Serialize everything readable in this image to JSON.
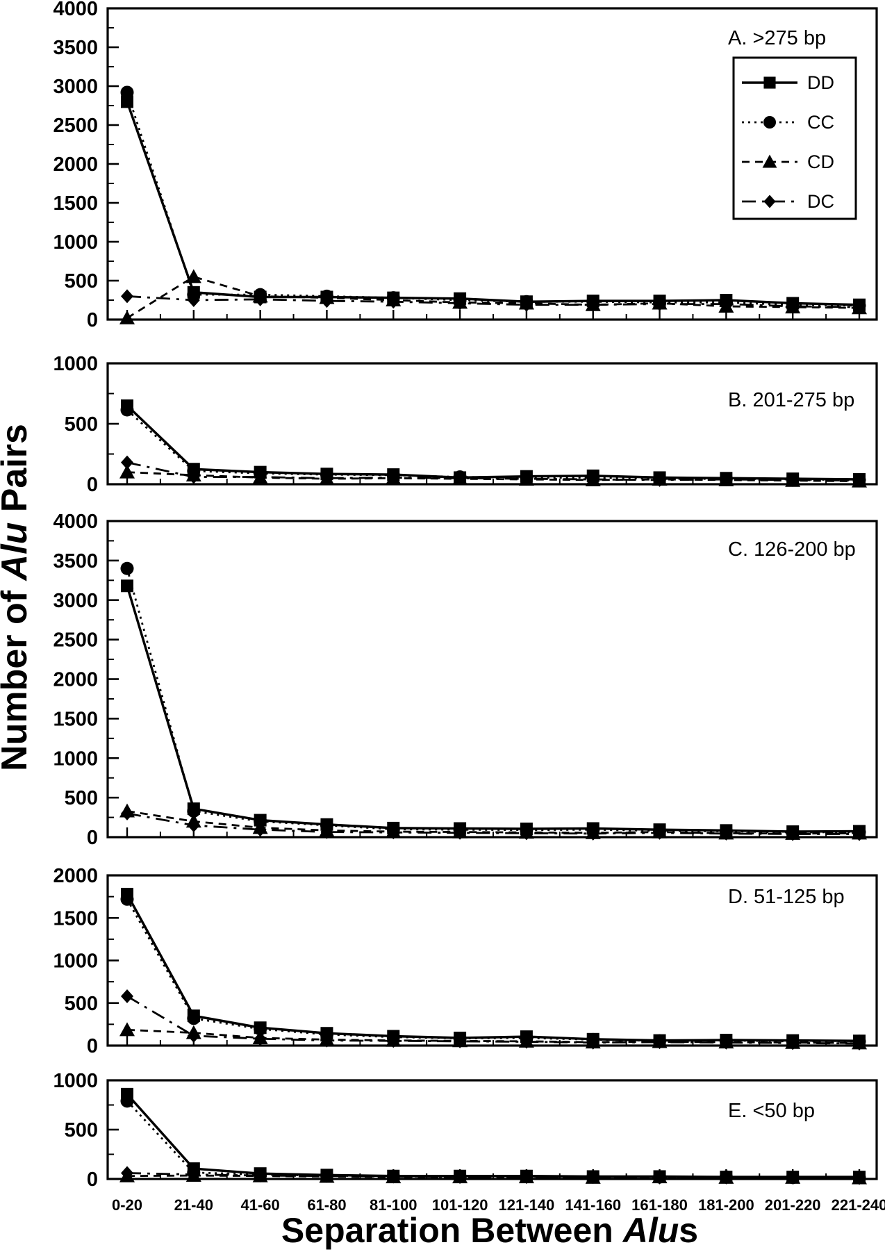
{
  "figure": {
    "y_axis": {
      "title_pre": "Number of ",
      "title_italic": "Alu",
      "title_post": " Pairs"
    },
    "x_axis": {
      "title_pre": "Separation Between ",
      "title_italic": "Alu",
      "title_post": "s",
      "categories": [
        "0-20",
        "21-40",
        "41-60",
        "61-80",
        "81-100",
        "101-120",
        "121-140",
        "141-160",
        "161-180",
        "181-200",
        "201-220",
        "221-240"
      ]
    },
    "colors": {
      "ink": "#000000",
      "paper": "#ffffff"
    }
  },
  "legend": {
    "entries": [
      {
        "name": "DD",
        "marker": "square",
        "line": "solid"
      },
      {
        "name": "CC",
        "marker": "circle",
        "line": "dotted"
      },
      {
        "name": "CD",
        "marker": "triangle",
        "line": "dashed"
      },
      {
        "name": "DC",
        "marker": "diamond",
        "line": "dashdot"
      }
    ]
  },
  "chart_data": [
    {
      "type": "line",
      "panel_label": "A.  >275 bp",
      "ylim": [
        0,
        4000
      ],
      "ytick_label_step": 500,
      "ytick_minor_step": 250,
      "series": [
        {
          "name": "DD",
          "values": [
            2800,
            350,
            290,
            290,
            280,
            270,
            230,
            240,
            240,
            250,
            210,
            190
          ]
        },
        {
          "name": "CC",
          "values": [
            2920,
            320,
            320,
            300,
            280,
            250,
            230,
            230,
            220,
            220,
            190,
            180
          ]
        },
        {
          "name": "CD",
          "values": [
            20,
            550,
            300,
            280,
            250,
            220,
            210,
            190,
            210,
            170,
            160,
            150
          ]
        },
        {
          "name": "DC",
          "values": [
            300,
            250,
            260,
            240,
            230,
            210,
            190,
            190,
            200,
            200,
            170,
            160
          ]
        }
      ]
    },
    {
      "type": "line",
      "panel_label": "B.  201-275 bp",
      "ylim": [
        0,
        1000
      ],
      "ytick_label_step": 500,
      "ytick_minor_step": 250,
      "series": [
        {
          "name": "DD",
          "values": [
            650,
            125,
            100,
            85,
            80,
            55,
            65,
            70,
            55,
            50,
            45,
            40
          ]
        },
        {
          "name": "CC",
          "values": [
            615,
            110,
            90,
            80,
            75,
            60,
            55,
            55,
            45,
            45,
            40,
            35
          ]
        },
        {
          "name": "CD",
          "values": [
            100,
            75,
            55,
            45,
            50,
            45,
            40,
            35,
            40,
            35,
            30,
            25
          ]
        },
        {
          "name": "DC",
          "values": [
            180,
            60,
            60,
            50,
            55,
            50,
            45,
            40,
            35,
            40,
            35,
            30
          ]
        }
      ]
    },
    {
      "type": "line",
      "panel_label": "C.  126-200 bp",
      "ylim": [
        0,
        4000
      ],
      "ytick_label_step": 500,
      "ytick_minor_step": 250,
      "series": [
        {
          "name": "DD",
          "values": [
            3180,
            360,
            215,
            160,
            115,
            110,
            105,
            110,
            95,
            85,
            70,
            75
          ]
        },
        {
          "name": "CC",
          "values": [
            3400,
            330,
            200,
            150,
            100,
            95,
            90,
            95,
            80,
            75,
            60,
            65
          ]
        },
        {
          "name": "CD",
          "values": [
            330,
            200,
            120,
            85,
            70,
            65,
            60,
            55,
            65,
            50,
            45,
            50
          ]
        },
        {
          "name": "DC",
          "values": [
            300,
            150,
            95,
            65,
            60,
            55,
            50,
            45,
            55,
            45,
            40,
            40
          ]
        }
      ]
    },
    {
      "type": "line",
      "panel_label": "D.  51-125 bp",
      "ylim": [
        0,
        2000
      ],
      "ytick_label_step": 500,
      "ytick_minor_step": 250,
      "series": [
        {
          "name": "DD",
          "values": [
            1780,
            350,
            210,
            145,
            110,
            90,
            105,
            75,
            60,
            65,
            60,
            55
          ]
        },
        {
          "name": "CC",
          "values": [
            1720,
            320,
            195,
            130,
            100,
            85,
            90,
            70,
            55,
            60,
            50,
            50
          ]
        },
        {
          "name": "CD",
          "values": [
            185,
            150,
            90,
            70,
            60,
            55,
            50,
            40,
            45,
            40,
            35,
            30
          ]
        },
        {
          "name": "DC",
          "values": [
            580,
            115,
            80,
            60,
            55,
            50,
            45,
            35,
            40,
            35,
            30,
            25
          ]
        }
      ]
    },
    {
      "type": "line",
      "panel_label": "E.  <50 bp",
      "ylim": [
        0,
        1000
      ],
      "ytick_label_step": 500,
      "ytick_minor_step": 250,
      "series": [
        {
          "name": "DD",
          "values": [
            860,
            105,
            55,
            40,
            30,
            30,
            30,
            25,
            25,
            20,
            20,
            20
          ]
        },
        {
          "name": "CC",
          "values": [
            790,
            65,
            45,
            35,
            25,
            25,
            25,
            20,
            20,
            20,
            15,
            15
          ]
        },
        {
          "name": "CD",
          "values": [
            30,
            35,
            30,
            25,
            20,
            20,
            20,
            15,
            20,
            15,
            15,
            10
          ]
        },
        {
          "name": "DC",
          "values": [
            60,
            45,
            35,
            30,
            25,
            20,
            20,
            20,
            15,
            15,
            15,
            10
          ]
        }
      ]
    }
  ]
}
